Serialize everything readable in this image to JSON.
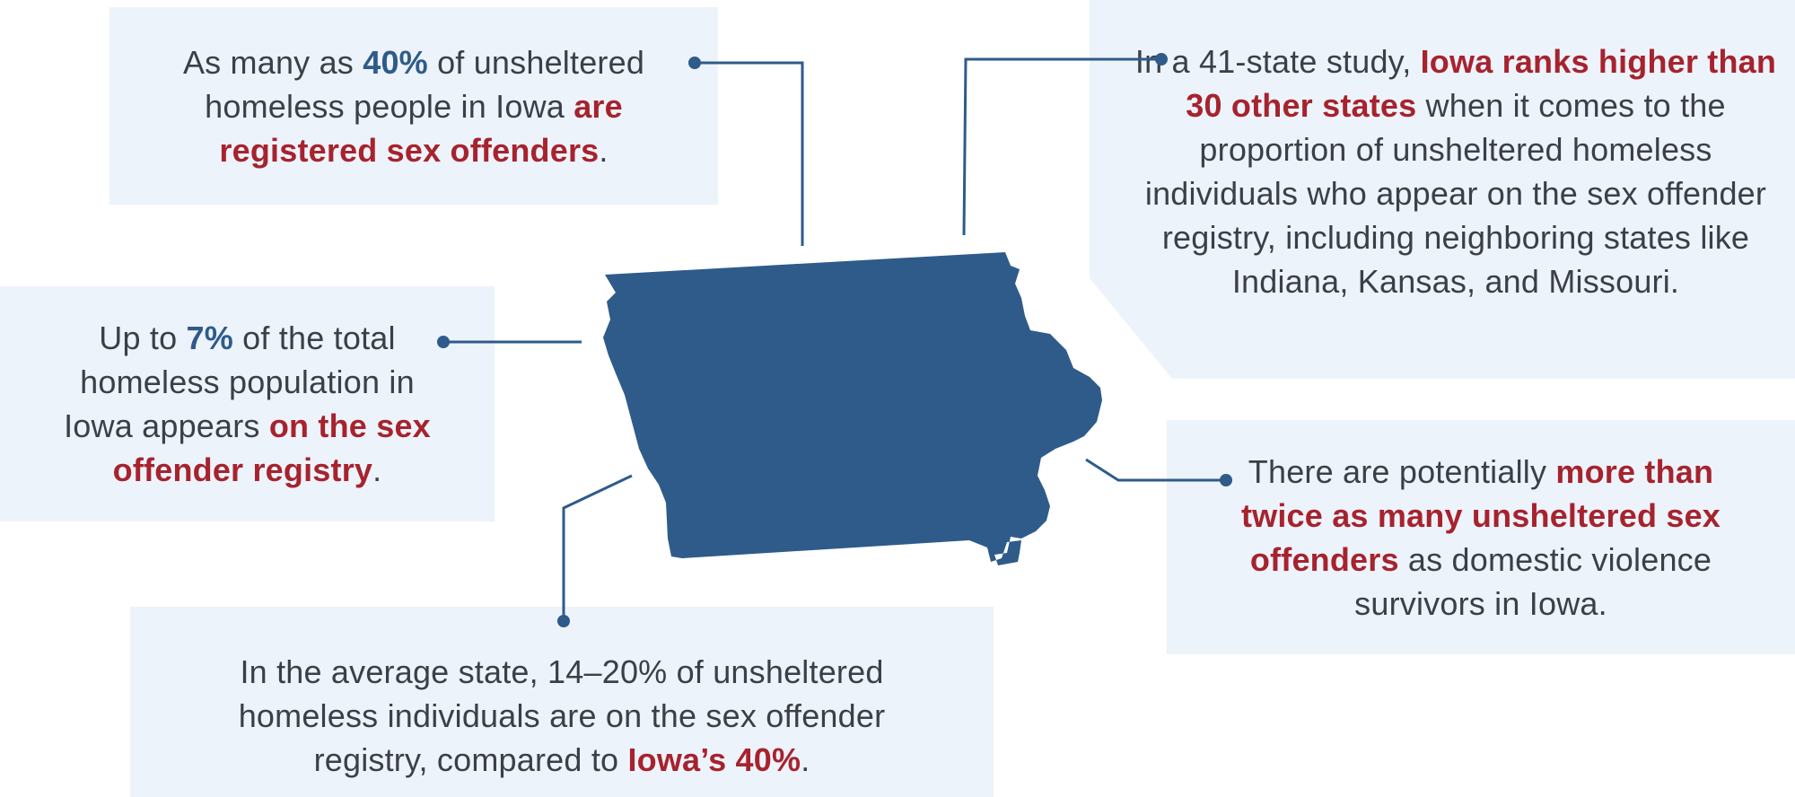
{
  "callouts": {
    "top_left": {
      "t1": "As many as ",
      "h1": "40%",
      "t2": " of unsheltered homeless people in Iowa ",
      "h2": "are registered sex offenders",
      "t3": "."
    },
    "top_right": {
      "t1": "In a 41-state study, ",
      "h1": "Iowa ranks higher than 30 other states",
      "t2": " when it comes to the proportion of unsheltered homeless individuals who appear on the sex offender registry, including neighboring states like Indiana, Kansas, and Missouri."
    },
    "mid_left": {
      "t1": "Up to ",
      "h1": "7%",
      "t2": " of the total homeless population in Iowa appears ",
      "h2": "on the sex offender registry",
      "t3": "."
    },
    "mid_right": {
      "t1": "There are potentially ",
      "h1": "more than twice as many unsheltered sex offenders",
      "t2": " as domestic violence survivors in Iowa."
    },
    "bottom": {
      "t1": "In the average state, 14–20% of unsheltered homeless individuals are on the sex offender registry, compared to ",
      "h1": "Iowa’s 40%",
      "t2": "."
    }
  },
  "colors": {
    "map_fill": "#2e5b8a",
    "box_bg": "#edf3fa",
    "highlight_red": "#a6232e",
    "highlight_blue": "#2e5b8a"
  },
  "icons": {
    "map": "iowa-state-map-icon",
    "connector": "callout-connector-line"
  }
}
